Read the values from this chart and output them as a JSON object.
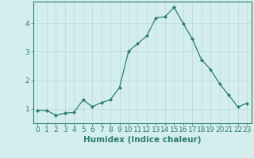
{
  "x": [
    0,
    1,
    2,
    3,
    4,
    5,
    6,
    7,
    8,
    9,
    10,
    11,
    12,
    13,
    14,
    15,
    16,
    17,
    18,
    19,
    20,
    21,
    22,
    23
  ],
  "y": [
    0.95,
    0.95,
    0.78,
    0.85,
    0.88,
    1.32,
    1.08,
    1.22,
    1.32,
    1.75,
    3.02,
    3.28,
    3.55,
    4.18,
    4.22,
    4.55,
    3.98,
    3.45,
    2.72,
    2.38,
    1.88,
    1.48,
    1.07,
    1.2
  ],
  "xlabel": "Humidex (Indice chaleur)",
  "xlim": [
    -0.5,
    23.5
  ],
  "ylim": [
    0.5,
    4.75
  ],
  "line_color": "#2d7d6e",
  "marker": "D",
  "marker_size": 2.0,
  "bg_color": "#d4eeed",
  "grid_color": "#b8d8d6",
  "axis_color": "#2d7d6e",
  "tick_color": "#2d7d6e",
  "yticks": [
    1,
    2,
    3,
    4
  ],
  "xticks": [
    0,
    1,
    2,
    3,
    4,
    5,
    6,
    7,
    8,
    9,
    10,
    11,
    12,
    13,
    14,
    15,
    16,
    17,
    18,
    19,
    20,
    21,
    22,
    23
  ],
  "xlabel_fontsize": 7.5,
  "tick_fontsize": 6.5
}
